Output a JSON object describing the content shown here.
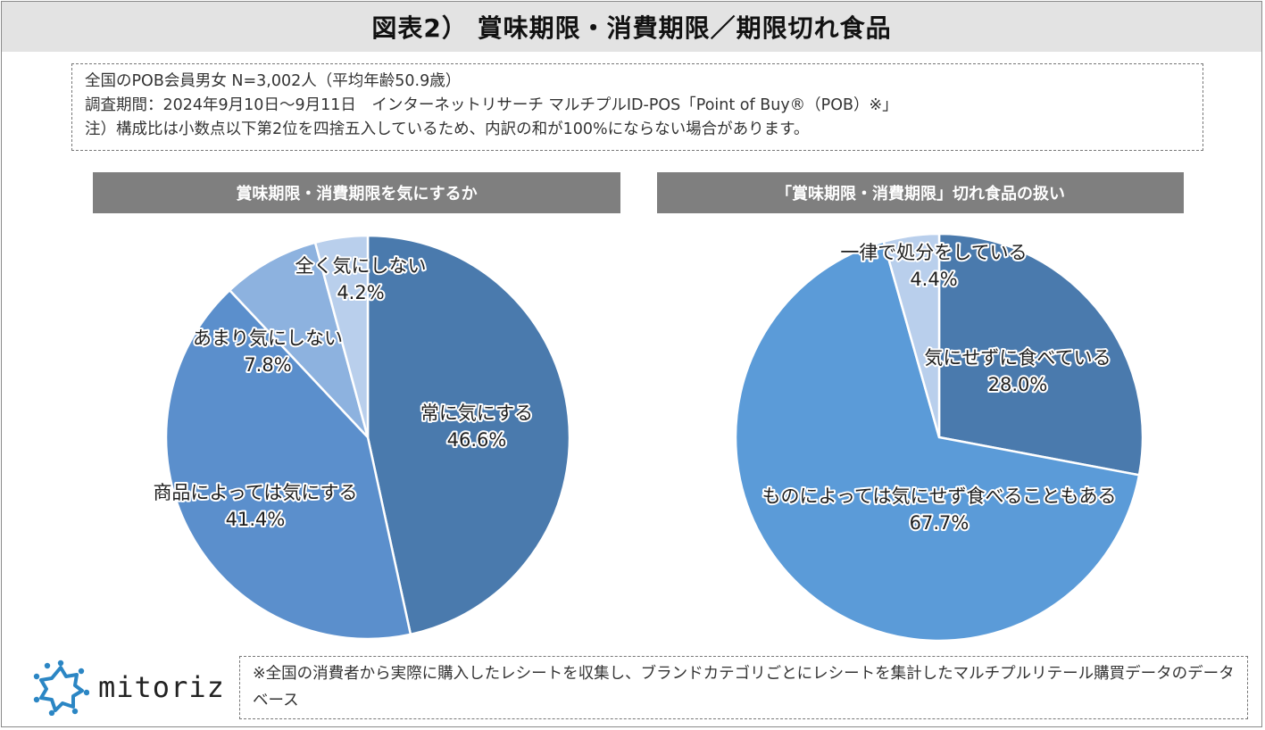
{
  "title": "図表2） 賞味期限・消費期限／期限切れ食品",
  "notes": [
    "全国のPOB会員男女 N=3,002人（平均年齢50.9歳）",
    "調査期間：2024年9月10日～9月11日　インターネットリサーチ マルチプルID-POS「Point of Buy®（POB）※」",
    "注）構成比は小数点以下第2位を四捨五入しているため、内訳の和が100%にならない場合があります。"
  ],
  "footnote": "※全国の消費者から実際に購入したレシートを収集し、ブランドカテゴリごとにレシートを集計したマルチプルリテール購買データのデータベース",
  "logo": {
    "text": "mitoriz",
    "icon": "gear-icon",
    "color": "#2b86c4"
  },
  "chart_data": [
    {
      "type": "pie",
      "title": "賞味期限・消費期限を気にするか",
      "slices": [
        {
          "label": "常に気にする",
          "value": 46.6,
          "display": "46.6%",
          "color": "#4a7aad"
        },
        {
          "label": "商品によっては気にする",
          "value": 41.4,
          "display": "41.4%",
          "color": "#5b8fcc"
        },
        {
          "label": "あまり気にしない",
          "value": 7.8,
          "display": "7.8%",
          "color": "#8db2df"
        },
        {
          "label": "全く気にしない",
          "value": 4.2,
          "display": "4.2%",
          "color": "#b9cfec"
        }
      ]
    },
    {
      "type": "pie",
      "title": "「賞味期限・消費期限」切れ食品の扱い",
      "slices": [
        {
          "label": "気にせずに食べている",
          "value": 28.0,
          "display": "28.0%",
          "color": "#4a7aad"
        },
        {
          "label": "ものによっては気にせず食べることもある",
          "value": 67.7,
          "display": "67.7%",
          "color": "#5b9bd8"
        },
        {
          "label": "一律で処分をしている",
          "value": 4.4,
          "display": "4.4%",
          "color": "#b9cfec"
        }
      ]
    }
  ]
}
